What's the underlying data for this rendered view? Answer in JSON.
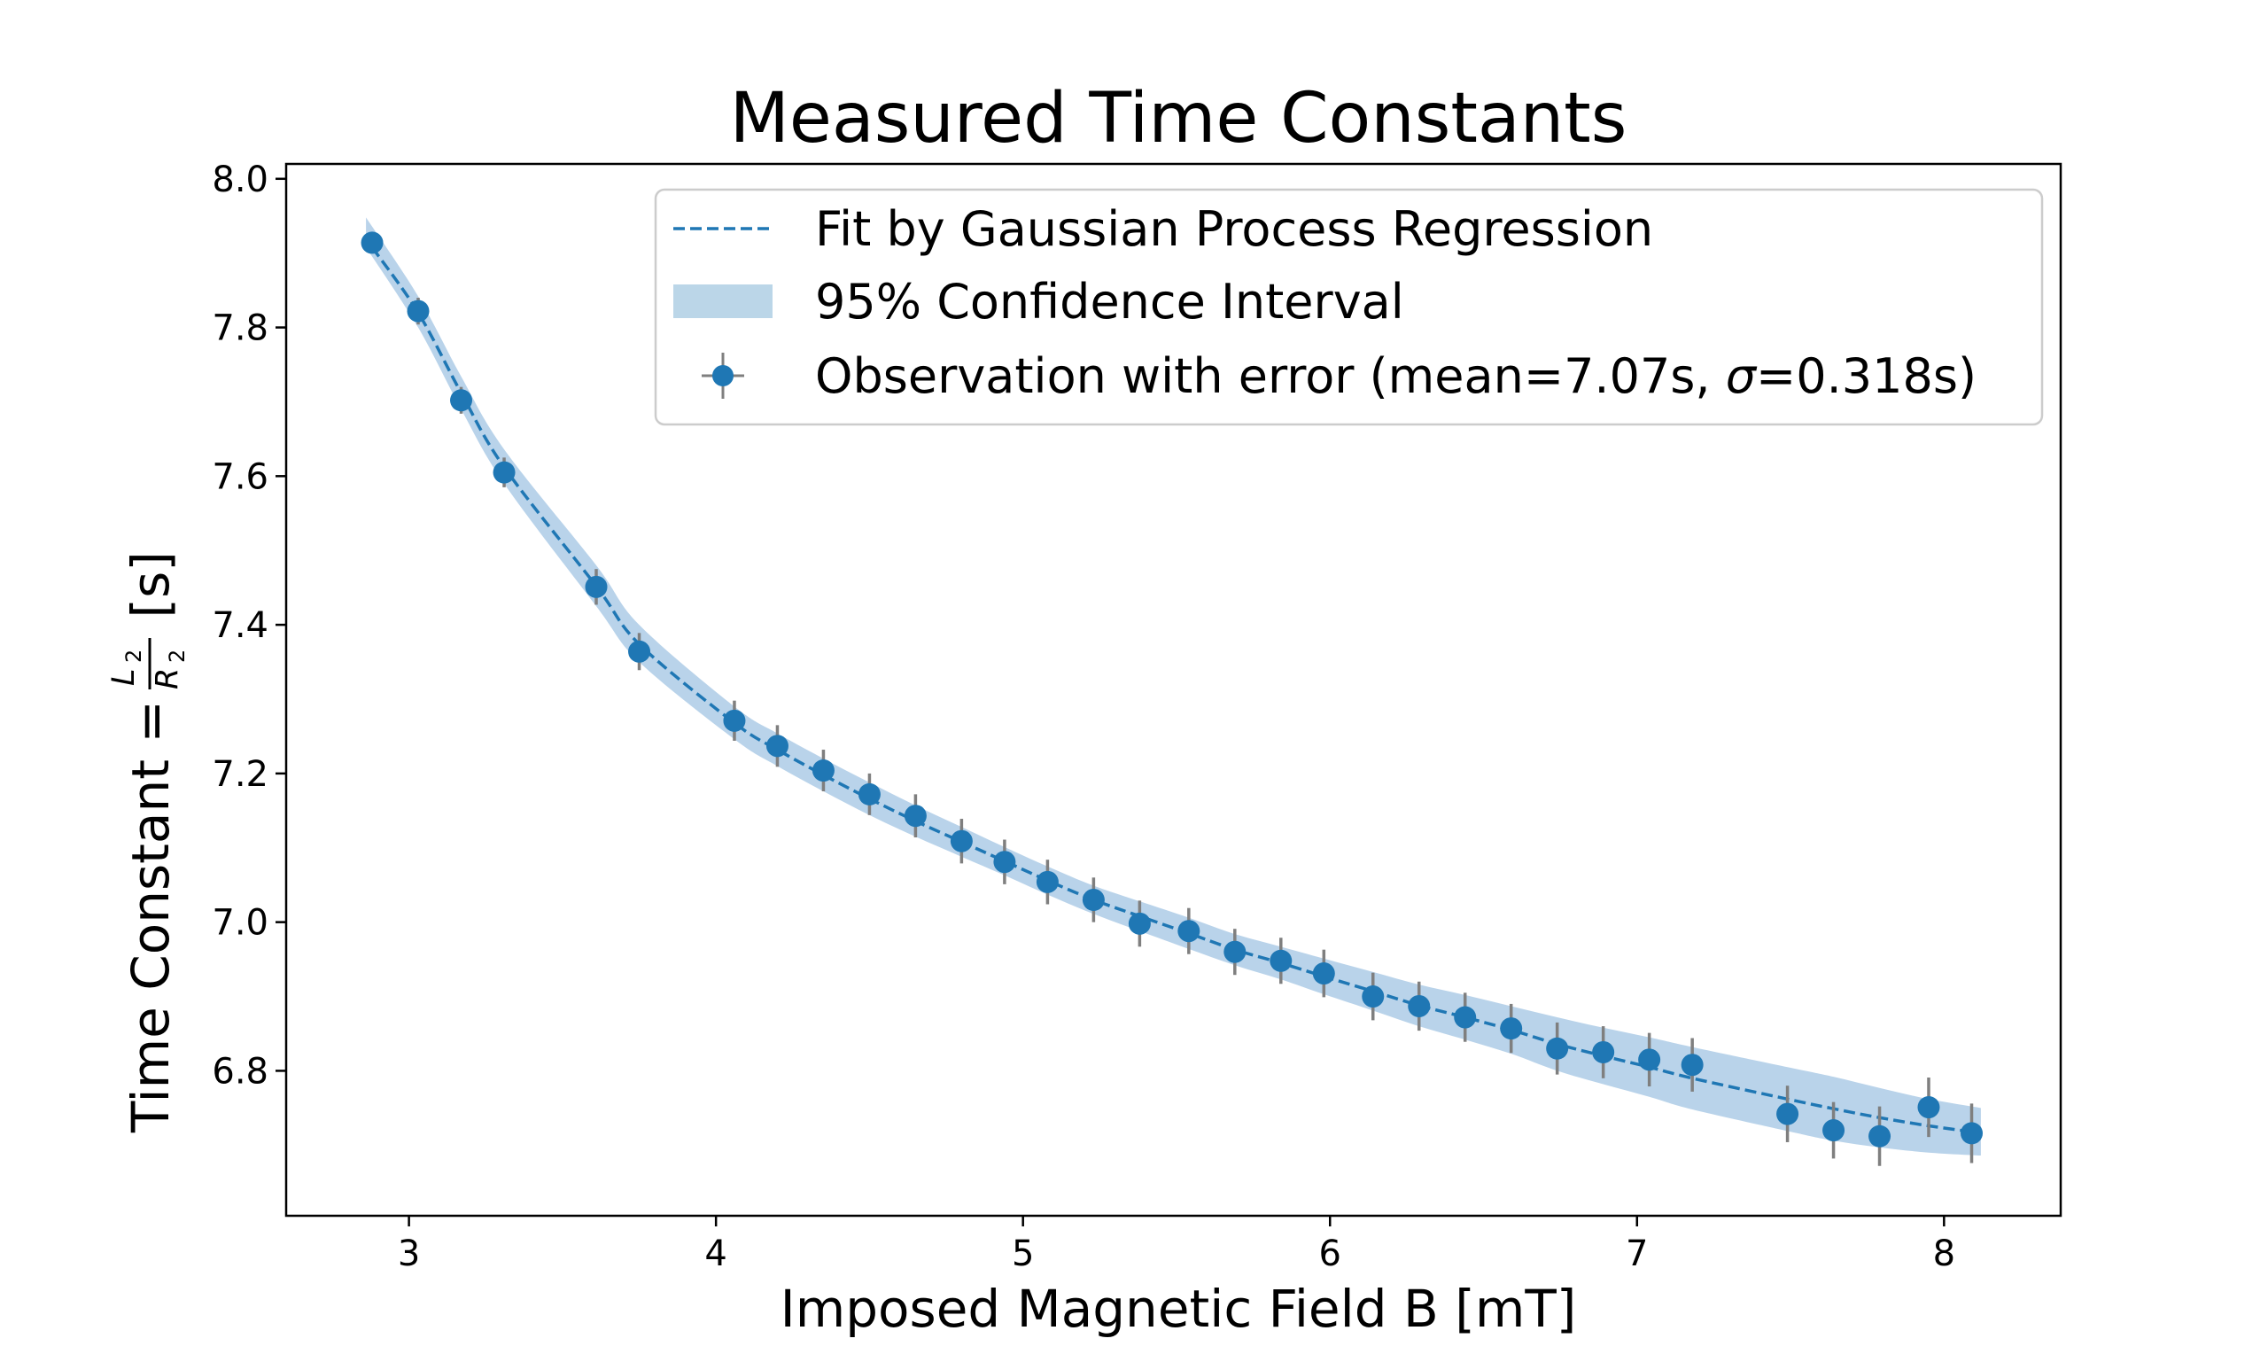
{
  "chart_data": {
    "type": "scatter",
    "title": "Measured Time Constants",
    "xlabel": "Imposed Magnetic Field B [mT]",
    "ylabel": {
      "prefix": "Time Constant = ",
      "numerator": "L",
      "numerator_sub": "2",
      "denominator": "R",
      "denominator_sub": "2",
      "suffix": " [s]"
    },
    "xlim": [
      2.6,
      8.38
    ],
    "ylim": [
      6.605,
      8.02
    ],
    "xticks": [
      3,
      4,
      5,
      6,
      7,
      8
    ],
    "yticks": [
      6.8,
      7.0,
      7.2,
      7.4,
      7.6,
      7.8,
      8.0
    ],
    "xtick_labels": [
      "3",
      "4",
      "5",
      "6",
      "7",
      "8"
    ],
    "ytick_labels": [
      "6.8",
      "7.0",
      "7.2",
      "7.4",
      "7.6",
      "7.8",
      "8.0"
    ],
    "grid": false,
    "legend": {
      "placement": "top-right",
      "entries": [
        {
          "key": "fit",
          "label": "Fit by Gaussian Process Regression"
        },
        {
          "key": "band",
          "label": "95% Confidence Interval"
        },
        {
          "key": "obs",
          "label_pre": "Observation with error (mean=7.07s, ",
          "label_sigma": "σ",
          "label_post": "=0.318s)"
        }
      ]
    },
    "colors": {
      "marker": "#1f77b4",
      "fit_line": "#1f77b4",
      "band": "#b9d3ea",
      "errorbar": "#7f7f7f"
    },
    "series": [
      {
        "key": "obs",
        "name": "Observation with error (mean=7.07s, σ=0.318s)",
        "x": [
          2.88,
          3.03,
          3.17,
          3.31,
          3.61,
          3.75,
          4.06,
          4.2,
          4.35,
          4.5,
          4.65,
          4.8,
          4.94,
          5.08,
          5.23,
          5.38,
          5.54,
          5.69,
          5.84,
          5.98,
          6.14,
          6.29,
          6.44,
          6.59,
          6.74,
          6.89,
          7.04,
          7.18,
          7.49,
          7.64,
          7.79,
          7.95,
          8.09
        ],
        "y": [
          7.914,
          7.822,
          7.702,
          7.605,
          7.451,
          7.364,
          7.271,
          7.237,
          7.204,
          7.172,
          7.143,
          7.109,
          7.081,
          7.054,
          7.03,
          6.998,
          6.988,
          6.96,
          6.948,
          6.931,
          6.9,
          6.887,
          6.872,
          6.857,
          6.83,
          6.825,
          6.815,
          6.808,
          6.742,
          6.72,
          6.712,
          6.751,
          6.716
        ],
        "err": [
          0.012,
          0.018,
          0.018,
          0.02,
          0.024,
          0.025,
          0.027,
          0.028,
          0.028,
          0.028,
          0.029,
          0.03,
          0.03,
          0.03,
          0.03,
          0.031,
          0.031,
          0.031,
          0.031,
          0.032,
          0.032,
          0.033,
          0.033,
          0.033,
          0.035,
          0.035,
          0.036,
          0.036,
          0.038,
          0.038,
          0.04,
          0.04,
          0.04
        ]
      },
      {
        "key": "fit",
        "name": "Fit by Gaussian Process Regression",
        "x": [
          2.88,
          3.03,
          3.17,
          3.31,
          3.61,
          3.75,
          4.06,
          4.2,
          4.35,
          4.5,
          4.65,
          4.8,
          4.94,
          5.08,
          5.23,
          5.38,
          5.54,
          5.69,
          5.84,
          5.98,
          6.14,
          6.29,
          6.44,
          6.59,
          6.74,
          6.89,
          7.04,
          7.18,
          7.49,
          7.64,
          7.79,
          7.95,
          8.09
        ],
        "y": [
          7.908,
          7.82,
          7.712,
          7.612,
          7.452,
          7.374,
          7.268,
          7.232,
          7.198,
          7.166,
          7.136,
          7.108,
          7.082,
          7.056,
          7.03,
          7.008,
          6.985,
          6.963,
          6.945,
          6.927,
          6.907,
          6.888,
          6.872,
          6.855,
          6.836,
          6.82,
          6.805,
          6.79,
          6.762,
          6.749,
          6.737,
          6.726,
          6.718
        ]
      }
    ],
    "band": {
      "name": "95% Confidence Interval",
      "x": [
        2.86,
        3.03,
        3.17,
        3.31,
        3.61,
        3.75,
        4.06,
        4.2,
        4.35,
        4.5,
        4.65,
        4.8,
        4.94,
        5.08,
        5.23,
        5.38,
        5.54,
        5.69,
        5.84,
        5.98,
        6.14,
        6.29,
        6.44,
        6.59,
        6.74,
        6.89,
        7.04,
        7.18,
        7.49,
        7.64,
        7.79,
        7.95,
        8.12
      ],
      "lower": [
        7.908,
        7.8,
        7.69,
        7.59,
        7.425,
        7.35,
        7.246,
        7.21,
        7.176,
        7.144,
        7.115,
        7.088,
        7.063,
        7.037,
        7.011,
        6.988,
        6.964,
        6.942,
        6.923,
        6.903,
        6.881,
        6.86,
        6.842,
        6.823,
        6.8,
        6.782,
        6.765,
        6.748,
        6.719,
        6.706,
        6.697,
        6.69,
        6.686
      ],
      "upper": [
        7.948,
        7.842,
        7.734,
        7.636,
        7.48,
        7.4,
        7.29,
        7.254,
        7.22,
        7.188,
        7.157,
        7.128,
        7.101,
        7.075,
        7.049,
        7.028,
        7.006,
        6.984,
        6.967,
        6.951,
        6.933,
        6.916,
        6.902,
        6.887,
        6.872,
        6.858,
        6.845,
        6.832,
        6.805,
        6.792,
        6.777,
        6.762,
        6.75
      ]
    }
  }
}
